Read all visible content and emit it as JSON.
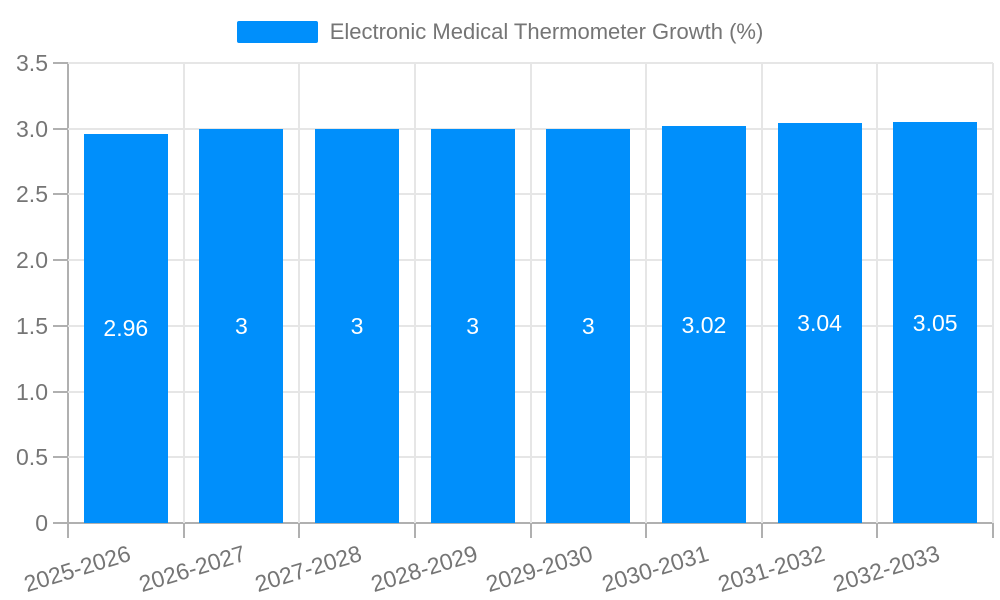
{
  "legend": {
    "label": "Electronic Medical Thermometer Growth (%)"
  },
  "colors": {
    "bar": "#008FFB",
    "grid": "#e6e6e6",
    "axis": "#b0b0b0",
    "axis_label": "#757575",
    "bar_label": "#ffffff",
    "background": "#ffffff"
  },
  "chart_data": {
    "type": "bar",
    "title": "Electronic Medical Thermometer Growth (%)",
    "categories": [
      "2025-2026",
      "2026-2027",
      "2027-2028",
      "2028-2029",
      "2029-2030",
      "2030-2031",
      "2031-2032",
      "2032-2033"
    ],
    "values": [
      2.96,
      3,
      3,
      3,
      3,
      3.02,
      3.04,
      3.05
    ],
    "value_labels": [
      "2.96",
      "3",
      "3",
      "3",
      "3",
      "3.02",
      "3.04",
      "3.05"
    ],
    "series_name": "Electronic Medical Thermometer Growth (%)",
    "xlabel": "",
    "ylabel": "",
    "ylim": [
      0,
      3.5
    ],
    "yticks": [
      0,
      0.5,
      1,
      1.5,
      2,
      2.5,
      3,
      3.5
    ],
    "ytick_labels": [
      "0",
      "0.5",
      "1.0",
      "1.5",
      "2.0",
      "2.5",
      "3.0",
      "3.5"
    ],
    "grid": true,
    "legend_position": "top",
    "value_label_position": "middle-of-bar"
  }
}
